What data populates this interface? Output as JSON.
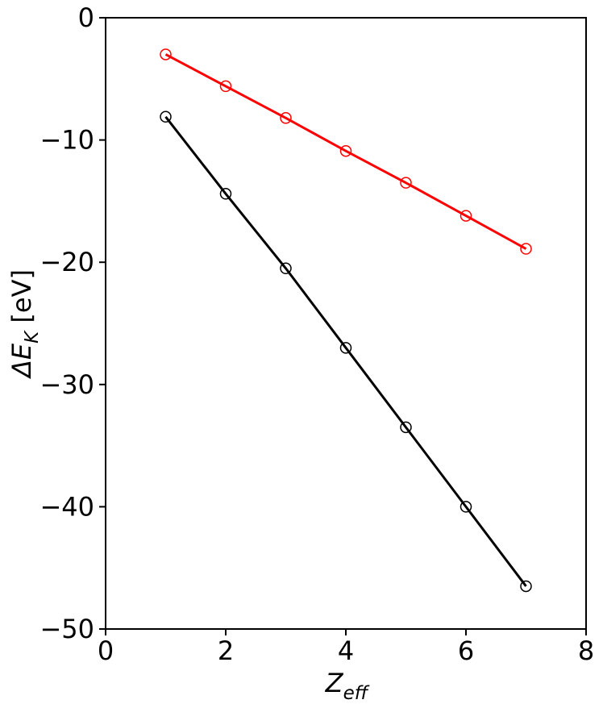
{
  "chart_data": {
    "type": "line",
    "xlabel": {
      "main": "Z",
      "sub": "eff"
    },
    "ylabel": {
      "main": "ΔE",
      "sub": "K",
      "rest": " [eV]"
    },
    "x": [
      1,
      2,
      3,
      4,
      5,
      6,
      7
    ],
    "series": [
      {
        "color": "#ff0000",
        "values": [
          -3.0,
          -5.6,
          -8.2,
          -10.9,
          -13.5,
          -16.2,
          -18.9
        ]
      },
      {
        "color": "#000000",
        "values": [
          -8.1,
          -14.4,
          -20.5,
          -27.0,
          -33.5,
          -40.0,
          -46.5
        ]
      }
    ],
    "marker": "open-circle",
    "xlim": [
      0,
      8
    ],
    "xticks": [
      0,
      2,
      4,
      6,
      8
    ],
    "ylim": [
      -50,
      0
    ],
    "yticks": [
      {
        "value": -50,
        "label": "−50"
      },
      {
        "value": -40,
        "label": "−40"
      },
      {
        "value": -30,
        "label": "−30"
      },
      {
        "value": -20,
        "label": "−20"
      },
      {
        "value": -10,
        "label": "−10"
      },
      0
    ]
  }
}
